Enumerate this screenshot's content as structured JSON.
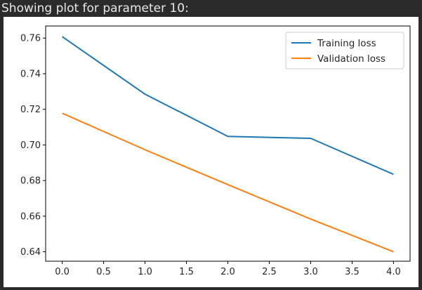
{
  "output": {
    "header_text": "Showing plot for parameter 10:"
  },
  "chart_data": {
    "type": "line",
    "title": "",
    "xlabel": "",
    "ylabel": "",
    "x": [
      0,
      1,
      2,
      3,
      4
    ],
    "series": [
      {
        "name": "Training loss",
        "values": [
          0.7608,
          0.7285,
          0.7048,
          0.7037,
          0.6835
        ],
        "color": "#1f77b4"
      },
      {
        "name": "Validation loss",
        "values": [
          0.7178,
          0.6973,
          0.6777,
          0.6584,
          0.64
        ],
        "color": "#ff7f0e"
      }
    ],
    "xlim": [
      -0.2,
      4.2
    ],
    "ylim": [
      0.6347,
      0.7668
    ],
    "xticks": [
      0.0,
      0.5,
      1.0,
      1.5,
      2.0,
      2.5,
      3.0,
      3.5,
      4.0
    ],
    "xtick_labels": [
      "0.0",
      "0.5",
      "1.0",
      "1.5",
      "2.0",
      "2.5",
      "3.0",
      "3.5",
      "4.0"
    ],
    "yticks": [
      0.64,
      0.66,
      0.68,
      0.7,
      0.72,
      0.74,
      0.76
    ],
    "ytick_labels": [
      "0.64",
      "0.66",
      "0.68",
      "0.70",
      "0.72",
      "0.74",
      "0.76"
    ],
    "legend_position": "top-right",
    "grid": false
  }
}
